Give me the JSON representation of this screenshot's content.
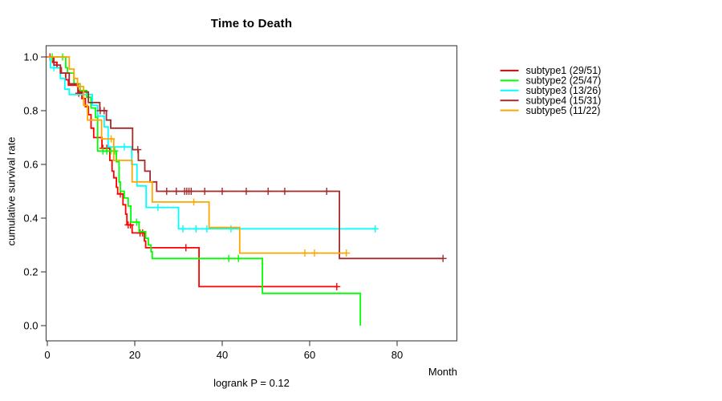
{
  "chart_data": {
    "type": "line",
    "variant": "kaplan-meier-step",
    "title": "Time to Death",
    "xlabel": "Month",
    "ylabel": "cumulative survival rate",
    "annotation": "logrank P = 0.12",
    "x_ticks": [
      0,
      20,
      40,
      60,
      80
    ],
    "y_ticks": [
      0.0,
      0.2,
      0.4,
      0.6,
      0.8,
      1.0
    ],
    "xlim": [
      0,
      94
    ],
    "ylim": [
      0,
      1
    ],
    "grid": false,
    "legend_position": "right",
    "axis_color": "#4d4d4d",
    "series": [
      {
        "name": "subtype1 (29/51)",
        "color": "#ff0000",
        "steps": [
          [
            0,
            1.0
          ],
          [
            1.2,
            0.98
          ],
          [
            2.2,
            0.96
          ],
          [
            3.2,
            0.94
          ],
          [
            4.2,
            0.915
          ],
          [
            4.8,
            0.895
          ],
          [
            7,
            0.865
          ],
          [
            7.9,
            0.845
          ],
          [
            8.7,
            0.815
          ],
          [
            9.4,
            0.785
          ],
          [
            10,
            0.735
          ],
          [
            10.6,
            0.7
          ],
          [
            12.5,
            0.66
          ],
          [
            14.3,
            0.615
          ],
          [
            14.8,
            0.575
          ],
          [
            15.2,
            0.55
          ],
          [
            15.8,
            0.515
          ],
          [
            16.1,
            0.49
          ],
          [
            17.3,
            0.45
          ],
          [
            17.9,
            0.415
          ],
          [
            18.2,
            0.375
          ],
          [
            19.4,
            0.345
          ],
          [
            22.2,
            0.315
          ],
          [
            22.5,
            0.29
          ],
          [
            34.7,
            0.145
          ]
        ],
        "end": 66.5,
        "censors": [
          [
            0.6,
            1.0
          ],
          [
            7.2,
            0.865
          ],
          [
            12.7,
            0.66
          ],
          [
            13.6,
            0.66
          ],
          [
            16.7,
            0.49
          ],
          [
            18.5,
            0.375
          ],
          [
            19,
            0.375
          ],
          [
            21.2,
            0.345
          ],
          [
            21.8,
            0.345
          ],
          [
            31.7,
            0.29
          ],
          [
            66.2,
            0.145
          ]
        ]
      },
      {
        "name": "subtype2 (25/47)",
        "color": "#00ff00",
        "steps": [
          [
            0,
            1.0
          ],
          [
            4.2,
            0.96
          ],
          [
            4.6,
            0.94
          ],
          [
            6.1,
            0.9
          ],
          [
            7.5,
            0.875
          ],
          [
            9,
            0.85
          ],
          [
            10,
            0.81
          ],
          [
            11,
            0.775
          ],
          [
            11.5,
            0.65
          ],
          [
            15.8,
            0.61
          ],
          [
            16.4,
            0.535
          ],
          [
            16.7,
            0.5
          ],
          [
            17.6,
            0.475
          ],
          [
            18.5,
            0.445
          ],
          [
            19.1,
            0.385
          ],
          [
            21,
            0.35
          ],
          [
            22.5,
            0.325
          ],
          [
            23.1,
            0.3
          ],
          [
            23.7,
            0.275
          ],
          [
            24,
            0.25
          ],
          [
            49.2,
            0.12
          ],
          [
            71.6,
            0.0
          ]
        ],
        "end": 71.6,
        "censors": [
          [
            1.1,
            1.0
          ],
          [
            3.5,
            1.0
          ],
          [
            12.7,
            0.65
          ],
          [
            13.6,
            0.65
          ],
          [
            14.5,
            0.65
          ],
          [
            15.4,
            0.65
          ],
          [
            20.4,
            0.385
          ],
          [
            41.5,
            0.25
          ],
          [
            43.7,
            0.25
          ]
        ]
      },
      {
        "name": "subtype3 (13/26)",
        "color": "#00ffff",
        "steps": [
          [
            0,
            1.0
          ],
          [
            0.7,
            0.96
          ],
          [
            3,
            0.92
          ],
          [
            4,
            0.88
          ],
          [
            5,
            0.86
          ],
          [
            10.3,
            0.82
          ],
          [
            11.5,
            0.78
          ],
          [
            13,
            0.74
          ],
          [
            13.9,
            0.665
          ],
          [
            19.3,
            0.6
          ],
          [
            20.5,
            0.52
          ],
          [
            22.6,
            0.44
          ],
          [
            30,
            0.36
          ]
        ],
        "end": 75,
        "censors": [
          [
            1.5,
            0.96
          ],
          [
            17.6,
            0.665
          ],
          [
            25.3,
            0.44
          ],
          [
            31,
            0.36
          ],
          [
            34,
            0.36
          ],
          [
            36.5,
            0.36
          ],
          [
            42,
            0.36
          ],
          [
            75,
            0.36
          ]
        ]
      },
      {
        "name": "subtype4 (15/31)",
        "color": "#a52a2a",
        "steps": [
          [
            0,
            1.0
          ],
          [
            1.5,
            0.97
          ],
          [
            3,
            0.94
          ],
          [
            5,
            0.9
          ],
          [
            7,
            0.87
          ],
          [
            9.4,
            0.83
          ],
          [
            12,
            0.8
          ],
          [
            13.5,
            0.765
          ],
          [
            14.5,
            0.735
          ],
          [
            19.5,
            0.655
          ],
          [
            20.8,
            0.615
          ],
          [
            22.3,
            0.575
          ],
          [
            23.5,
            0.535
          ],
          [
            25,
            0.5
          ],
          [
            66.8,
            0.25
          ]
        ],
        "end": 90.5,
        "censors": [
          [
            12.1,
            0.8
          ],
          [
            13,
            0.8
          ],
          [
            20.7,
            0.655
          ],
          [
            27.3,
            0.5
          ],
          [
            29.5,
            0.5
          ],
          [
            31.4,
            0.5
          ],
          [
            31.9,
            0.5
          ],
          [
            32.4,
            0.5
          ],
          [
            32.9,
            0.5
          ],
          [
            36,
            0.5
          ],
          [
            40,
            0.5
          ],
          [
            45.5,
            0.5
          ],
          [
            50.5,
            0.5
          ],
          [
            54.3,
            0.5
          ],
          [
            63.9,
            0.5
          ],
          [
            90.5,
            0.25
          ]
        ]
      },
      {
        "name": "subtype5 (11/22)",
        "color": "#ffa500",
        "steps": [
          [
            0,
            1.0
          ],
          [
            5,
            0.955
          ],
          [
            6.1,
            0.92
          ],
          [
            6.9,
            0.89
          ],
          [
            8.3,
            0.82
          ],
          [
            9.2,
            0.765
          ],
          [
            12.4,
            0.695
          ],
          [
            15.2,
            0.615
          ],
          [
            19.4,
            0.535
          ],
          [
            24,
            0.46
          ],
          [
            37,
            0.365
          ],
          [
            44,
            0.27
          ]
        ],
        "end": 68.4,
        "censors": [
          [
            7.5,
            0.89
          ],
          [
            14.6,
            0.695
          ],
          [
            33.5,
            0.46
          ],
          [
            58.9,
            0.27
          ],
          [
            61.1,
            0.27
          ],
          [
            68.4,
            0.27
          ]
        ]
      }
    ]
  }
}
